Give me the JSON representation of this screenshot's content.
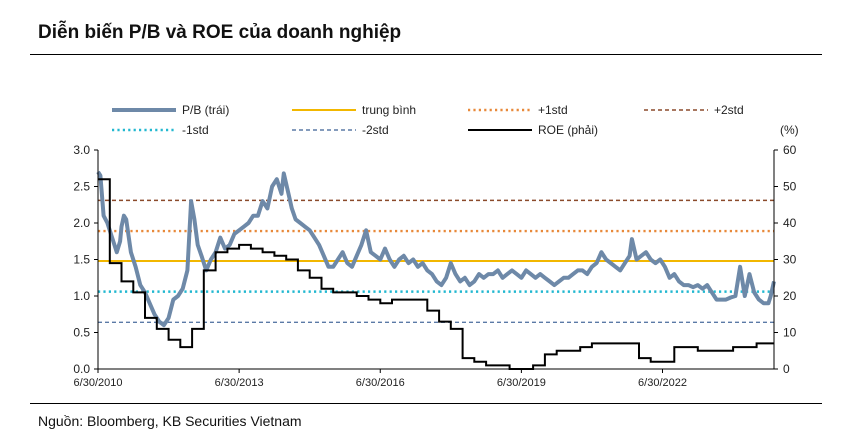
{
  "header": {
    "title": "Diễn biến P/B và ROE của doanh nghiệp"
  },
  "footer": {
    "source": "Nguồn: Bloomberg, KB Securities Vietnam"
  },
  "chart_data": {
    "type": "line",
    "y_left": {
      "min": 0,
      "max": 3.0,
      "ticks": [
        "0.0",
        "0.5",
        "1.0",
        "1.5",
        "2.0",
        "2.5",
        "3.0"
      ]
    },
    "y_right": {
      "min": 0,
      "max": 60,
      "ticks": [
        "0",
        "10",
        "20",
        "30",
        "40",
        "50",
        "60"
      ],
      "unit": "(%)"
    },
    "x": {
      "start": 2010.5,
      "end": 2024.87,
      "ticks": [
        {
          "pos": 2010.5,
          "label": "6/30/2010"
        },
        {
          "pos": 2013.5,
          "label": "6/30/2013"
        },
        {
          "pos": 2016.5,
          "label": "6/30/2016"
        },
        {
          "pos": 2019.5,
          "label": "6/30/2019"
        },
        {
          "pos": 2022.5,
          "label": "6/30/2022"
        }
      ]
    },
    "legend": [
      {
        "key": "pb",
        "label": "P/B (trái)",
        "color": "#6e89a8",
        "style": "thick"
      },
      {
        "key": "mean",
        "label": "trung bình",
        "color": "#f2b700",
        "style": "solid"
      },
      {
        "key": "p1",
        "label": "+1std",
        "color": "#e8893a",
        "style": "dotted"
      },
      {
        "key": "p2",
        "label": "+2std",
        "color": "#8b4a2b",
        "style": "dashed"
      },
      {
        "key": "m1",
        "label": "-1std",
        "color": "#22b8d0",
        "style": "dotted"
      },
      {
        "key": "m2",
        "label": "-2std",
        "color": "#5b7aa6",
        "style": "dashed"
      },
      {
        "key": "roe",
        "label": "ROE (phải)",
        "color": "#000000",
        "style": "solid"
      }
    ],
    "bands": {
      "mean": 1.48,
      "p1": 1.89,
      "p2": 2.31,
      "m1": 1.06,
      "m2": 0.64
    },
    "pb": [
      [
        2010.5,
        2.7
      ],
      [
        2010.55,
        2.65
      ],
      [
        2010.62,
        2.1
      ],
      [
        2010.7,
        2.0
      ],
      [
        2010.8,
        1.8
      ],
      [
        2010.9,
        1.6
      ],
      [
        2010.97,
        1.75
      ],
      [
        2011.0,
        1.95
      ],
      [
        2011.05,
        2.1
      ],
      [
        2011.1,
        2.05
      ],
      [
        2011.2,
        1.6
      ],
      [
        2011.3,
        1.4
      ],
      [
        2011.4,
        1.15
      ],
      [
        2011.5,
        1.05
      ],
      [
        2011.6,
        0.9
      ],
      [
        2011.7,
        0.75
      ],
      [
        2011.8,
        0.65
      ],
      [
        2011.9,
        0.6
      ],
      [
        2012.0,
        0.7
      ],
      [
        2012.1,
        0.95
      ],
      [
        2012.2,
        1.0
      ],
      [
        2012.3,
        1.1
      ],
      [
        2012.4,
        1.35
      ],
      [
        2012.48,
        2.3
      ],
      [
        2012.55,
        2.05
      ],
      [
        2012.62,
        1.7
      ],
      [
        2012.7,
        1.55
      ],
      [
        2012.8,
        1.35
      ],
      [
        2012.9,
        1.5
      ],
      [
        2013.0,
        1.6
      ],
      [
        2013.1,
        1.8
      ],
      [
        2013.2,
        1.65
      ],
      [
        2013.3,
        1.7
      ],
      [
        2013.4,
        1.85
      ],
      [
        2013.5,
        1.9
      ],
      [
        2013.6,
        1.95
      ],
      [
        2013.7,
        2.0
      ],
      [
        2013.8,
        2.1
      ],
      [
        2013.9,
        2.1
      ],
      [
        2014.0,
        2.3
      ],
      [
        2014.1,
        2.2
      ],
      [
        2014.2,
        2.5
      ],
      [
        2014.3,
        2.6
      ],
      [
        2014.4,
        2.4
      ],
      [
        2014.45,
        2.68
      ],
      [
        2014.55,
        2.4
      ],
      [
        2014.62,
        2.2
      ],
      [
        2014.7,
        2.05
      ],
      [
        2014.8,
        2.0
      ],
      [
        2014.9,
        1.95
      ],
      [
        2015.0,
        1.9
      ],
      [
        2015.1,
        1.8
      ],
      [
        2015.2,
        1.7
      ],
      [
        2015.3,
        1.55
      ],
      [
        2015.4,
        1.4
      ],
      [
        2015.5,
        1.4
      ],
      [
        2015.6,
        1.5
      ],
      [
        2015.7,
        1.6
      ],
      [
        2015.8,
        1.45
      ],
      [
        2015.9,
        1.4
      ],
      [
        2016.0,
        1.55
      ],
      [
        2016.1,
        1.7
      ],
      [
        2016.2,
        1.9
      ],
      [
        2016.3,
        1.6
      ],
      [
        2016.4,
        1.55
      ],
      [
        2016.5,
        1.5
      ],
      [
        2016.6,
        1.65
      ],
      [
        2016.7,
        1.5
      ],
      [
        2016.8,
        1.4
      ],
      [
        2016.9,
        1.5
      ],
      [
        2017.0,
        1.55
      ],
      [
        2017.1,
        1.45
      ],
      [
        2017.2,
        1.5
      ],
      [
        2017.3,
        1.4
      ],
      [
        2017.4,
        1.45
      ],
      [
        2017.5,
        1.35
      ],
      [
        2017.6,
        1.3
      ],
      [
        2017.7,
        1.2
      ],
      [
        2017.8,
        1.15
      ],
      [
        2017.9,
        1.25
      ],
      [
        2018.0,
        1.45
      ],
      [
        2018.1,
        1.3
      ],
      [
        2018.2,
        1.2
      ],
      [
        2018.3,
        1.25
      ],
      [
        2018.4,
        1.15
      ],
      [
        2018.5,
        1.2
      ],
      [
        2018.6,
        1.3
      ],
      [
        2018.7,
        1.25
      ],
      [
        2018.8,
        1.3
      ],
      [
        2018.9,
        1.3
      ],
      [
        2019.0,
        1.35
      ],
      [
        2019.1,
        1.25
      ],
      [
        2019.2,
        1.3
      ],
      [
        2019.3,
        1.35
      ],
      [
        2019.4,
        1.3
      ],
      [
        2019.5,
        1.25
      ],
      [
        2019.6,
        1.35
      ],
      [
        2019.7,
        1.3
      ],
      [
        2019.8,
        1.25
      ],
      [
        2019.9,
        1.3
      ],
      [
        2020.0,
        1.25
      ],
      [
        2020.1,
        1.2
      ],
      [
        2020.2,
        1.15
      ],
      [
        2020.3,
        1.2
      ],
      [
        2020.4,
        1.25
      ],
      [
        2020.5,
        1.25
      ],
      [
        2020.6,
        1.3
      ],
      [
        2020.7,
        1.35
      ],
      [
        2020.8,
        1.35
      ],
      [
        2020.9,
        1.3
      ],
      [
        2021.0,
        1.4
      ],
      [
        2021.1,
        1.45
      ],
      [
        2021.2,
        1.6
      ],
      [
        2021.3,
        1.5
      ],
      [
        2021.4,
        1.45
      ],
      [
        2021.5,
        1.4
      ],
      [
        2021.6,
        1.35
      ],
      [
        2021.7,
        1.45
      ],
      [
        2021.8,
        1.55
      ],
      [
        2021.85,
        1.78
      ],
      [
        2021.95,
        1.5
      ],
      [
        2022.05,
        1.55
      ],
      [
        2022.15,
        1.6
      ],
      [
        2022.25,
        1.5
      ],
      [
        2022.35,
        1.45
      ],
      [
        2022.45,
        1.5
      ],
      [
        2022.55,
        1.4
      ],
      [
        2022.65,
        1.25
      ],
      [
        2022.75,
        1.3
      ],
      [
        2022.85,
        1.2
      ],
      [
        2022.95,
        1.15
      ],
      [
        2023.05,
        1.15
      ],
      [
        2023.15,
        1.12
      ],
      [
        2023.25,
        1.15
      ],
      [
        2023.35,
        1.1
      ],
      [
        2023.45,
        1.15
      ],
      [
        2023.55,
        1.05
      ],
      [
        2023.65,
        0.95
      ],
      [
        2023.75,
        0.95
      ],
      [
        2023.85,
        0.95
      ],
      [
        2023.95,
        0.98
      ],
      [
        2024.05,
        1.0
      ],
      [
        2024.15,
        1.4
      ],
      [
        2024.25,
        1.0
      ],
      [
        2024.35,
        1.3
      ],
      [
        2024.45,
        1.05
      ],
      [
        2024.55,
        0.95
      ],
      [
        2024.65,
        0.9
      ],
      [
        2024.75,
        0.9
      ],
      [
        2024.8,
        1.0
      ],
      [
        2024.87,
        1.2
      ]
    ],
    "roe": [
      [
        2010.5,
        52
      ],
      [
        2010.75,
        52
      ],
      [
        2010.75,
        29
      ],
      [
        2011.0,
        29
      ],
      [
        2011.0,
        24
      ],
      [
        2011.25,
        24
      ],
      [
        2011.25,
        21
      ],
      [
        2011.5,
        21
      ],
      [
        2011.5,
        14
      ],
      [
        2011.75,
        14
      ],
      [
        2011.75,
        11
      ],
      [
        2012.0,
        11
      ],
      [
        2012.0,
        8
      ],
      [
        2012.25,
        8
      ],
      [
        2012.25,
        6
      ],
      [
        2012.5,
        6
      ],
      [
        2012.5,
        11
      ],
      [
        2012.75,
        11
      ],
      [
        2012.75,
        27
      ],
      [
        2013.0,
        27
      ],
      [
        2013.0,
        32
      ],
      [
        2013.25,
        32
      ],
      [
        2013.25,
        33
      ],
      [
        2013.5,
        33
      ],
      [
        2013.5,
        34
      ],
      [
        2013.75,
        34
      ],
      [
        2013.75,
        33
      ],
      [
        2014.0,
        33
      ],
      [
        2014.0,
        32
      ],
      [
        2014.25,
        32
      ],
      [
        2014.25,
        31
      ],
      [
        2014.5,
        31
      ],
      [
        2014.5,
        30
      ],
      [
        2014.75,
        30
      ],
      [
        2014.75,
        27
      ],
      [
        2015.0,
        27
      ],
      [
        2015.0,
        25
      ],
      [
        2015.25,
        25
      ],
      [
        2015.25,
        22
      ],
      [
        2015.5,
        22
      ],
      [
        2015.5,
        21
      ],
      [
        2015.75,
        21
      ],
      [
        2015.75,
        21
      ],
      [
        2016.0,
        21
      ],
      [
        2016.0,
        20
      ],
      [
        2016.25,
        20
      ],
      [
        2016.25,
        19
      ],
      [
        2016.5,
        19
      ],
      [
        2016.5,
        18
      ],
      [
        2016.75,
        18
      ],
      [
        2016.75,
        19
      ],
      [
        2017.0,
        19
      ],
      [
        2017.0,
        19
      ],
      [
        2017.5,
        19
      ],
      [
        2017.5,
        16
      ],
      [
        2017.75,
        16
      ],
      [
        2017.75,
        13
      ],
      [
        2018.0,
        13
      ],
      [
        2018.0,
        11
      ],
      [
        2018.25,
        11
      ],
      [
        2018.25,
        3
      ],
      [
        2018.5,
        3
      ],
      [
        2018.5,
        2
      ],
      [
        2018.75,
        2
      ],
      [
        2018.75,
        1
      ],
      [
        2019.25,
        1
      ],
      [
        2019.25,
        0
      ],
      [
        2019.75,
        0
      ],
      [
        2019.75,
        1
      ],
      [
        2020.0,
        1
      ],
      [
        2020.0,
        4
      ],
      [
        2020.25,
        4
      ],
      [
        2020.25,
        5
      ],
      [
        2020.75,
        5
      ],
      [
        2020.75,
        6
      ],
      [
        2021.0,
        6
      ],
      [
        2021.0,
        7
      ],
      [
        2021.25,
        7
      ],
      [
        2021.25,
        7
      ],
      [
        2022.0,
        7
      ],
      [
        2022.0,
        3
      ],
      [
        2022.25,
        3
      ],
      [
        2022.25,
        2
      ],
      [
        2022.75,
        2
      ],
      [
        2022.75,
        6
      ],
      [
        2023.0,
        6
      ],
      [
        2023.0,
        6
      ],
      [
        2023.25,
        6
      ],
      [
        2023.25,
        5
      ],
      [
        2023.75,
        5
      ],
      [
        2023.75,
        5
      ],
      [
        2024.0,
        5
      ],
      [
        2024.0,
        6
      ],
      [
        2024.25,
        6
      ],
      [
        2024.25,
        6
      ],
      [
        2024.5,
        6
      ],
      [
        2024.5,
        7
      ],
      [
        2024.87,
        7
      ]
    ]
  }
}
